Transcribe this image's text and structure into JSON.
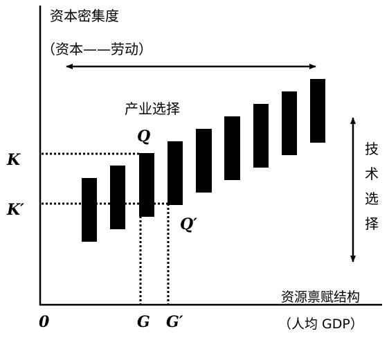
{
  "labels": {
    "y_axis_title": "资本密集度",
    "y_axis_subtitle": "（资本——劳动）",
    "industry_choice": "产业选择",
    "technology_choice": [
      "技",
      "术",
      "选",
      "择"
    ],
    "x_axis_title": "资源禀赋结构",
    "x_axis_subtitle": "（人均 GDP）",
    "origin": "0",
    "point_Q": "Q",
    "point_Q_prime": "Q′",
    "level_K": "K",
    "level_K_prime": "K′",
    "tick_G": "G",
    "tick_G_prime": "G′"
  },
  "colors": {
    "ink": "#000000",
    "background": "#ffffff"
  },
  "bars": [
    {
      "id": "bar-1"
    },
    {
      "id": "bar-2"
    },
    {
      "id": "bar-3"
    },
    {
      "id": "bar-4"
    },
    {
      "id": "bar-5"
    },
    {
      "id": "bar-6"
    },
    {
      "id": "bar-7"
    },
    {
      "id": "bar-8"
    },
    {
      "id": "bar-9"
    }
  ]
}
